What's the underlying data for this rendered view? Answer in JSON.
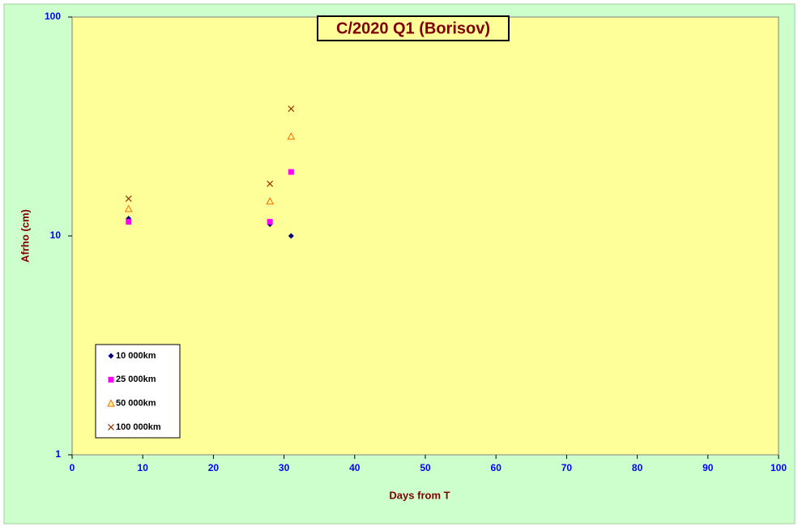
{
  "chart_data": {
    "type": "scatter",
    "title": "C/2020 Q1 (Borisov)",
    "x_label": "Days from  T",
    "y_label": "Afrho (cm)",
    "xlim": [
      0,
      100
    ],
    "xticks": [
      0,
      10,
      20,
      30,
      40,
      50,
      60,
      70,
      80,
      90,
      100
    ],
    "ylim": [
      1,
      100
    ],
    "yticks": [
      1,
      10,
      100
    ],
    "y_scale": "log",
    "legend": "bottom-left",
    "series": [
      {
        "name": "10 000km",
        "color": "#000080",
        "marker": "diamond",
        "x": [
          8,
          28,
          31
        ],
        "values": [
          12.0,
          11.3,
          10.0
        ]
      },
      {
        "name": "25 000km",
        "color": "#ff00ff",
        "marker": "square",
        "x": [
          8,
          28,
          31
        ],
        "values": [
          11.6,
          11.6,
          19.6
        ]
      },
      {
        "name": "50 000km",
        "color": "#ff6600",
        "marker": "triangle",
        "x": [
          8,
          28,
          31
        ],
        "values": [
          13.3,
          14.4,
          28.5
        ]
      },
      {
        "name": "100 000km",
        "color": "#993300",
        "marker": "cross",
        "x": [
          8,
          28,
          31
        ],
        "values": [
          14.8,
          17.3,
          38.1
        ]
      }
    ]
  }
}
